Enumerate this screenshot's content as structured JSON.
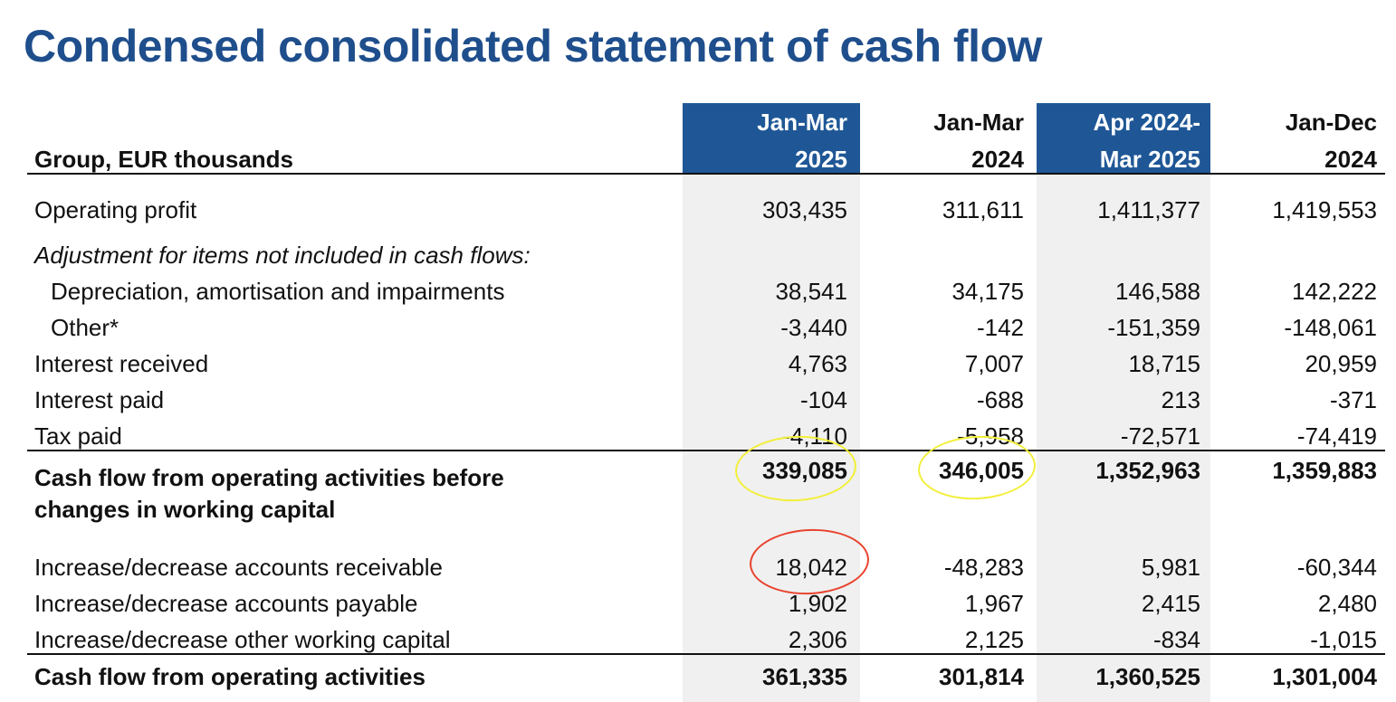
{
  "title": "Condensed consolidated statement of cash flow",
  "group_caption": "Group, EUR thousands",
  "columns": [
    {
      "line1": "Jan-Mar",
      "line2": "2025",
      "highlighted": true
    },
    {
      "line1": "Jan-Mar",
      "line2": "2024",
      "highlighted": false
    },
    {
      "line1": "Apr 2024-",
      "line2": "Mar 2025",
      "highlighted": true
    },
    {
      "line1": "Jan-Dec",
      "line2": "2024",
      "highlighted": false
    }
  ],
  "rows": [
    {
      "label": "Operating profit",
      "values": [
        "303,435",
        "311,611",
        "1,411,377",
        "1,419,553"
      ]
    },
    {
      "label": "Adjustment for items not included in cash flows:",
      "values": [
        "",
        "",
        "",
        ""
      ]
    },
    {
      "label": "Depreciation, amortisation and impairments",
      "values": [
        "38,541",
        "34,175",
        "146,588",
        "142,222"
      ]
    },
    {
      "label": "Other*",
      "values": [
        "-3,440",
        "-142",
        "-151,359",
        "-148,061"
      ]
    },
    {
      "label": "Interest received",
      "values": [
        "4,763",
        "7,007",
        "18,715",
        "20,959"
      ]
    },
    {
      "label": "Interest paid",
      "values": [
        "-104",
        "-688",
        "213",
        "-371"
      ]
    },
    {
      "label": "Tax paid",
      "values": [
        "-4,110",
        "-5,958",
        "-72,571",
        "-74,419"
      ]
    },
    {
      "label": "Cash flow from operating activities before",
      "values": [
        "339,085",
        "346,005",
        "1,352,963",
        "1,359,883"
      ]
    },
    {
      "label": "changes in working capital",
      "values": [
        "",
        "",
        "",
        ""
      ]
    },
    {
      "label": "Increase/decrease accounts receivable",
      "values": [
        "18,042",
        "-48,283",
        "5,981",
        "-60,344"
      ]
    },
    {
      "label": "Increase/decrease accounts payable",
      "values": [
        "1,902",
        "1,967",
        "2,415",
        "2,480"
      ]
    },
    {
      "label": "Increase/decrease other working capital",
      "values": [
        "2,306",
        "2,125",
        "-834",
        "-1,015"
      ]
    },
    {
      "label": "Cash flow from operating activities",
      "values": [
        "361,335",
        "301,814",
        "1,360,525",
        "1,301,004"
      ]
    }
  ],
  "colors": {
    "title": "#1f4e8c",
    "header_fill": "#1f5796",
    "column_shade": "#f0f0f0",
    "highlight_yellow": "#f2ef3a",
    "highlight_red": "#e8432e"
  }
}
